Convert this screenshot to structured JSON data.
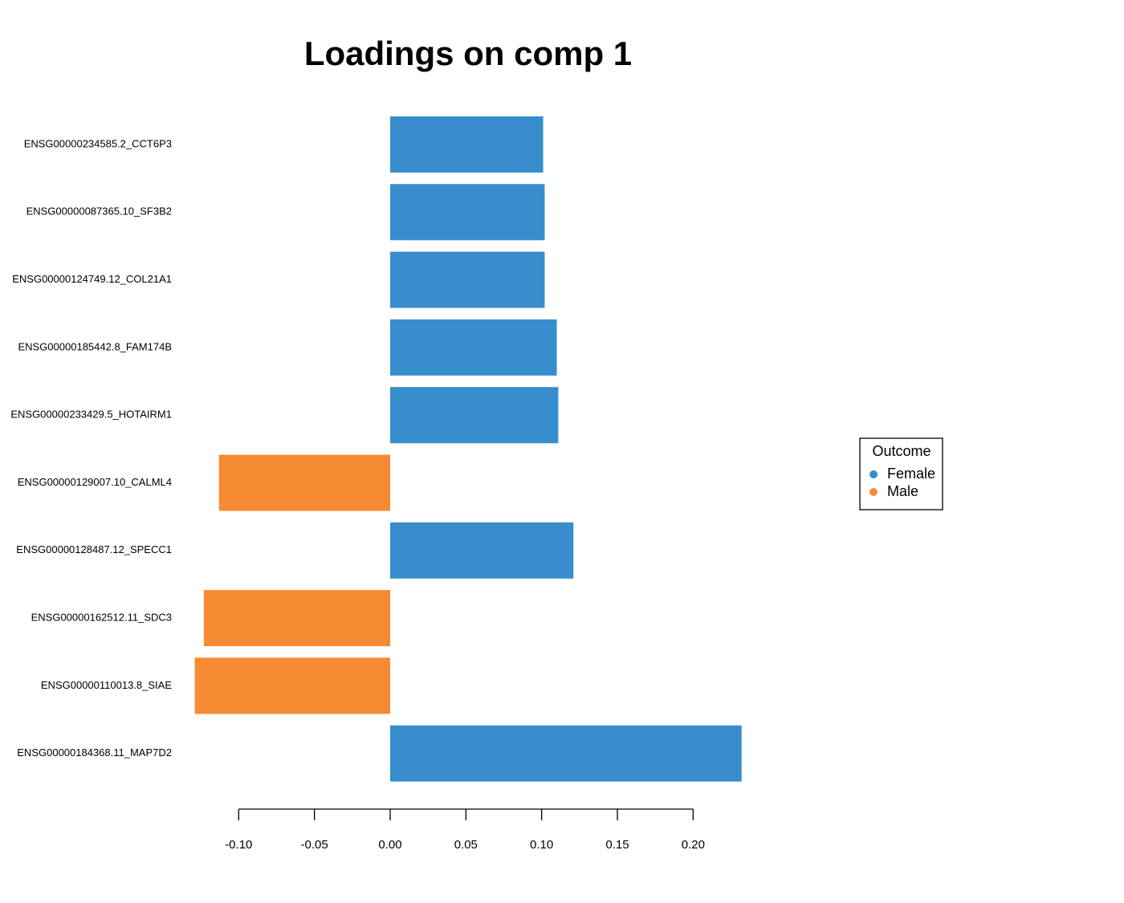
{
  "chart_data": {
    "type": "barh",
    "title": "Loadings on comp 1",
    "categories": [
      "ENSG00000234585.2_CCT6P3",
      "ENSG00000087365.10_SF3B2",
      "ENSG00000124749.12_COL21A1",
      "ENSG00000185442.8_FAM174B",
      "ENSG00000233429.5_HOTAIRM1",
      "ENSG00000129007.10_CALML4",
      "ENSG00000128487.12_SPECC1",
      "ENSG00000162512.11_SDC3",
      "ENSG00000110013.8_SIAE",
      "ENSG00000184368.11_MAP7D2"
    ],
    "values": [
      0.101,
      0.102,
      0.102,
      0.11,
      0.111,
      -0.113,
      0.121,
      -0.123,
      -0.129,
      0.232
    ],
    "colors": [
      "#388ecc",
      "#388ecc",
      "#388ecc",
      "#388ecc",
      "#388ecc",
      "#f68b33",
      "#388ecc",
      "#f68b33",
      "#f68b33",
      "#388ecc"
    ],
    "xlim": [
      -0.13,
      0.24
    ],
    "xticks": [
      {
        "value": -0.1,
        "label": "-0.10"
      },
      -0.05,
      {
        "value": 0,
        "label": "0.00"
      },
      0.05,
      {
        "value": 0.1,
        "label": "0.10"
      },
      0.15,
      {
        "value": 0.2,
        "label": "0.20"
      }
    ],
    "legend": {
      "title": "Outcome",
      "position": "right",
      "entries": [
        {
          "name": "Female",
          "color": "#388ecc"
        },
        {
          "name": "Male",
          "color": "#f68b33"
        }
      ]
    }
  }
}
